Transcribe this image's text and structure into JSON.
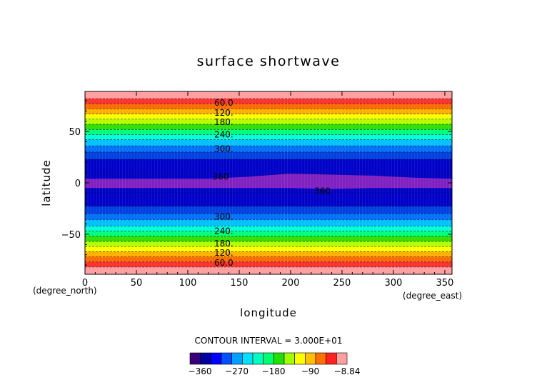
{
  "chart_data": {
    "type": "heatmap",
    "title": "surface shortwave",
    "xlabel": "longitude",
    "ylabel": "latitude",
    "x_units": "(degree_east)",
    "y_units": "(degree_north)",
    "xlim": [
      0,
      357
    ],
    "ylim": [
      -89,
      89
    ],
    "x_ticks": [
      0,
      50,
      100,
      150,
      200,
      250,
      300,
      350
    ],
    "y_ticks": [
      -50,
      0,
      50
    ],
    "contour_interval_text": "CONTOUR INTERVAL = 3.000E+01",
    "contour_labels": [
      {
        "text": "60.0",
        "lon": 135,
        "lat": 78
      },
      {
        "text": "120.",
        "lon": 135,
        "lat": 68
      },
      {
        "text": "180.",
        "lon": 135,
        "lat": 59
      },
      {
        "text": "240.",
        "lon": 135,
        "lat": 47
      },
      {
        "text": "300.",
        "lon": 135,
        "lat": 33
      },
      {
        "text": "360",
        "lon": 132,
        "lat": 6
      },
      {
        "text": "360",
        "lon": 231,
        "lat": -8
      },
      {
        "text": "300.",
        "lon": 135,
        "lat": -33
      },
      {
        "text": "240.",
        "lon": 135,
        "lat": -47
      },
      {
        "text": "180.",
        "lon": 135,
        "lat": -59
      },
      {
        "text": "120.",
        "lon": 135,
        "lat": -68
      },
      {
        "text": "60.0",
        "lon": 135,
        "lat": -78
      }
    ],
    "bands": [
      {
        "lat_min": 82,
        "lat_max": 89,
        "color": "#ff9fa0"
      },
      {
        "lat_min": 77,
        "lat_max": 82,
        "color": "#ff3030"
      },
      {
        "lat_min": 72,
        "lat_max": 77,
        "color": "#ff6a00"
      },
      {
        "lat_min": 67,
        "lat_max": 72,
        "color": "#ffb000"
      },
      {
        "lat_min": 62,
        "lat_max": 67,
        "color": "#ffff00"
      },
      {
        "lat_min": 57,
        "lat_max": 62,
        "color": "#b4ff00"
      },
      {
        "lat_min": 52,
        "lat_max": 57,
        "color": "#30e000"
      },
      {
        "lat_min": 47,
        "lat_max": 52,
        "color": "#00ff7a"
      },
      {
        "lat_min": 42,
        "lat_max": 47,
        "color": "#00ffdc"
      },
      {
        "lat_min": 36,
        "lat_max": 42,
        "color": "#00c0ff"
      },
      {
        "lat_min": 30,
        "lat_max": 36,
        "color": "#0070ff"
      },
      {
        "lat_min": 23,
        "lat_max": 30,
        "color": "#0040e0"
      },
      {
        "lat_min": 9,
        "lat_max": 23,
        "color": "#0000c8"
      },
      {
        "lat_min": -9,
        "lat_max": 9,
        "color": "#0000c8"
      },
      {
        "lat_min": -23,
        "lat_max": -9,
        "color": "#0000c8"
      },
      {
        "lat_min": -30,
        "lat_max": -23,
        "color": "#0040e0"
      },
      {
        "lat_min": -36,
        "lat_max": -30,
        "color": "#0070ff"
      },
      {
        "lat_min": -42,
        "lat_max": -36,
        "color": "#00c0ff"
      },
      {
        "lat_min": -47,
        "lat_max": -42,
        "color": "#00ffdc"
      },
      {
        "lat_min": -52,
        "lat_max": -47,
        "color": "#00ff7a"
      },
      {
        "lat_min": -57,
        "lat_max": -52,
        "color": "#30e000"
      },
      {
        "lat_min": -62,
        "lat_max": -57,
        "color": "#b4ff00"
      },
      {
        "lat_min": -67,
        "lat_max": -62,
        "color": "#ffff00"
      },
      {
        "lat_min": -72,
        "lat_max": -67,
        "color": "#ffb000"
      },
      {
        "lat_min": -77,
        "lat_max": -72,
        "color": "#ff6a00"
      },
      {
        "lat_min": -82,
        "lat_max": -77,
        "color": "#ff3030"
      },
      {
        "lat_min": -89,
        "lat_max": -82,
        "color": "#ff9fa0"
      }
    ],
    "equatorial_max": {
      "color": "#8020c0",
      "north_edge": [
        [
          0,
          4
        ],
        [
          60,
          4
        ],
        [
          120,
          4
        ],
        [
          160,
          6
        ],
        [
          200,
          9
        ],
        [
          240,
          8
        ],
        [
          280,
          7
        ],
        [
          320,
          5
        ],
        [
          357,
          4
        ]
      ],
      "south_edge": [
        [
          0,
          -5
        ],
        [
          60,
          -5
        ],
        [
          120,
          -5
        ],
        [
          160,
          -5
        ],
        [
          200,
          -5
        ],
        [
          240,
          -6
        ],
        [
          280,
          -5
        ],
        [
          320,
          -5
        ],
        [
          357,
          -5
        ]
      ]
    },
    "colorbar": {
      "colors": [
        "#3a007a",
        "#0000a0",
        "#0000ff",
        "#0050ff",
        "#00a0ff",
        "#00e0ff",
        "#00ffc0",
        "#00ff70",
        "#20e000",
        "#a0ff00",
        "#ffff00",
        "#ffc000",
        "#ff7000",
        "#ff2020",
        "#ff9fa0"
      ],
      "tick_labels": [
        "-360",
        "-270",
        "-180",
        "-90",
        "-8.84"
      ]
    }
  }
}
